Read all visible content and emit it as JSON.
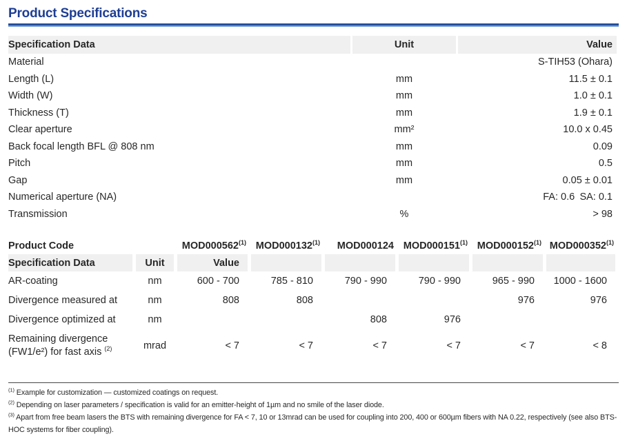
{
  "page": {
    "title": "Product Specifications"
  },
  "table1": {
    "headers": {
      "spec": "Specification Data",
      "unit": "Unit",
      "value": "Value"
    },
    "rows": [
      {
        "spec": "Material",
        "unit": "",
        "value": "S-TIH53 (Ohara)"
      },
      {
        "spec": "Length (L)",
        "unit": "mm",
        "value": "11.5 ± 0.1"
      },
      {
        "spec": "Width (W)",
        "unit": "mm",
        "value": "1.0 ± 0.1"
      },
      {
        "spec": "Thickness (T)",
        "unit": "mm",
        "value": "1.9 ± 0.1"
      },
      {
        "spec": "Clear aperture",
        "unit": "mm²",
        "value": "10.0 x 0.45"
      },
      {
        "spec": "Back focal length BFL @ 808 nm",
        "unit": "mm",
        "value": "0.09"
      },
      {
        "spec": "Pitch",
        "unit": "mm",
        "value": "0.5"
      },
      {
        "spec": "Gap",
        "unit": "mm",
        "value": "0.05 ± 0.01"
      },
      {
        "spec": "Numerical aperture (NA)",
        "unit": "",
        "value": "FA: 0.6 SA: 0.1"
      },
      {
        "spec": "Transmission",
        "unit": "%",
        "value": "> 98"
      }
    ]
  },
  "table2": {
    "product_code_label": "Product Code",
    "product_codes": [
      {
        "code": "MOD000562",
        "sup": "(1)"
      },
      {
        "code": "MOD000132",
        "sup": "(1)"
      },
      {
        "code": "MOD000124",
        "sup": ""
      },
      {
        "code": "MOD000151",
        "sup": "(1)"
      },
      {
        "code": "MOD000152",
        "sup": "(1)"
      },
      {
        "code": "MOD000352",
        "sup": "(1)"
      }
    ],
    "headers": {
      "spec": "Specification Data",
      "unit": "Unit",
      "value": "Value"
    },
    "rows": [
      {
        "spec_lines": [
          "AR-coating"
        ],
        "sup": "",
        "unit": "nm",
        "values": [
          "600 - 700",
          "785 - 810",
          "790 - 990",
          "790 - 990",
          "965 - 990",
          "1000 - 1600"
        ]
      },
      {
        "spec_lines": [
          "Divergence measured at"
        ],
        "sup": "",
        "unit": "nm",
        "values": [
          "808",
          "808",
          "",
          "",
          "976",
          "976"
        ]
      },
      {
        "spec_lines": [
          "Divergence optimized at"
        ],
        "sup": "",
        "unit": "nm",
        "values": [
          "",
          "",
          "808",
          "976",
          "",
          ""
        ]
      },
      {
        "spec_lines": [
          "Remaining divergence",
          "(FW1/e²) for fast axis"
        ],
        "sup": "(2)",
        "unit": "mrad",
        "values": [
          "< 7",
          "< 7",
          "< 7",
          "< 7",
          "< 7",
          "< 8"
        ]
      }
    ]
  },
  "footnotes": [
    {
      "marker": "(1)",
      "text": "Example for customization — customized coatings on request."
    },
    {
      "marker": "(2)",
      "text": "Depending on laser parameters / specification is valid for an emitter-height of 1µm and no smile of the laser diode."
    },
    {
      "marker": "(3)",
      "text": "Apart from free beam lasers the BTS with remaining divergence for FA < 7, 10 or 13mrad can be used for coupling into 200, 400 or 600µm fibers with NA 0.22, respectively (see also BTS-HOC systems for fiber coupling)."
    }
  ],
  "colors": {
    "title_navy": "#1d3e94",
    "rule_dark": "#24509e",
    "rule_light": "#7fa3d6",
    "header_row_bg": "#f0f0f0",
    "body_text": "#272727",
    "footnote_rule": "#454545"
  }
}
